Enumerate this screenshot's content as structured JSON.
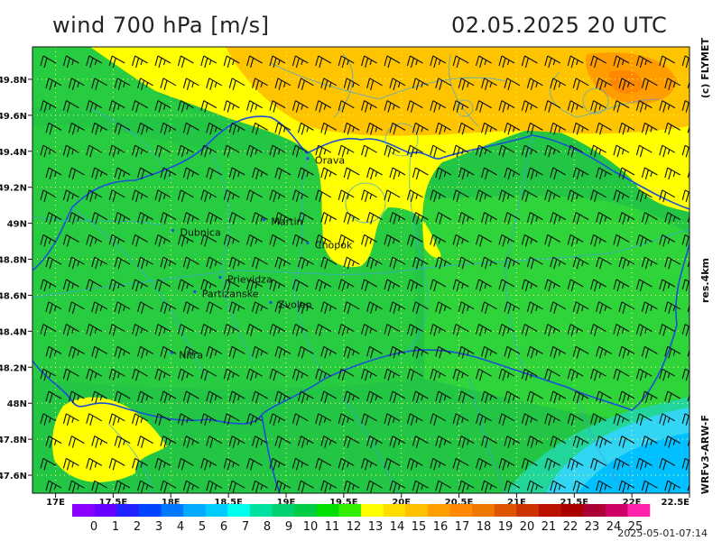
{
  "header": {
    "title": "wind 700 hPa [m/s]",
    "datetime": "02.05.2025   20 UTC"
  },
  "side_labels": {
    "copyright": "(c) FLYMET",
    "resolution": "res.4km",
    "model": "WRFv3-ARW-F"
  },
  "footer": {
    "timestamp": "2025-05-01-07:14"
  },
  "map": {
    "lon_range": [
      16.8,
      22.5
    ],
    "lat_range": [
      47.5,
      49.98
    ],
    "lon_ticks": [
      "17E",
      "17.5E",
      "18E",
      "18.5E",
      "19E",
      "19.5E",
      "20E",
      "20.5E",
      "21E",
      "21.5E",
      "22E",
      "22.5E"
    ],
    "lon_values": [
      17.0,
      17.5,
      18.0,
      18.5,
      19.0,
      19.5,
      20.0,
      20.5,
      21.0,
      21.5,
      22.0,
      22.5
    ],
    "lat_ticks": [
      "49.8N",
      "49.6N",
      "49.4N",
      "49.2N",
      "49N",
      "48.8N",
      "48.6N",
      "48.4N",
      "48.2N",
      "48N",
      "47.8N",
      "47.6N"
    ],
    "lat_values": [
      49.8,
      49.6,
      49.4,
      49.2,
      49.0,
      48.8,
      48.6,
      48.4,
      48.2,
      48.0,
      47.8,
      47.6
    ],
    "cities": [
      {
        "name": "Orava",
        "lon": 19.25,
        "lat": 49.33
      },
      {
        "name": "Dubnica",
        "lon": 18.08,
        "lat": 48.93
      },
      {
        "name": "Martin",
        "lon": 18.87,
        "lat": 48.99
      },
      {
        "name": "Chopok",
        "lon": 19.25,
        "lat": 48.86
      },
      {
        "name": "Prievidza",
        "lon": 18.49,
        "lat": 48.67
      },
      {
        "name": "Partizanske",
        "lon": 18.27,
        "lat": 48.59
      },
      {
        "name": "Zvolen",
        "lon": 18.93,
        "lat": 48.53
      },
      {
        "name": "Nitra",
        "lon": 18.07,
        "lat": 48.25
      }
    ]
  },
  "colorbar": {
    "labels": [
      "0",
      "1",
      "2",
      "3",
      "4",
      "5",
      "6",
      "7",
      "8",
      "9",
      "10",
      "11",
      "12",
      "13",
      "14",
      "15",
      "16",
      "17",
      "18",
      "19",
      "20",
      "21",
      "22",
      "23",
      "24",
      "25"
    ],
    "colors": [
      "#8a00ff",
      "#6600ff",
      "#2222ff",
      "#0044ff",
      "#0077ff",
      "#00aaff",
      "#00ccff",
      "#00ffee",
      "#00e0a0",
      "#00d070",
      "#00cc44",
      "#00e000",
      "#33ee00",
      "#ffff00",
      "#ffdd00",
      "#ffc000",
      "#ffa000",
      "#ff8800",
      "#ee7700",
      "#dd5500",
      "#cc3300",
      "#bb1100",
      "#aa0000",
      "#aa0033",
      "#cc0066",
      "#ff22aa"
    ]
  },
  "colors": {
    "green_field": "#22c544",
    "light_green": "#35d534",
    "yellow": "#ffff00",
    "orange": "#ffb800",
    "dark_orange": "#ff9000",
    "light_blue": "#33d5f5",
    "cyan": "#00c0ff",
    "border_line": "#1a50d8",
    "grid": "#ffff66"
  }
}
